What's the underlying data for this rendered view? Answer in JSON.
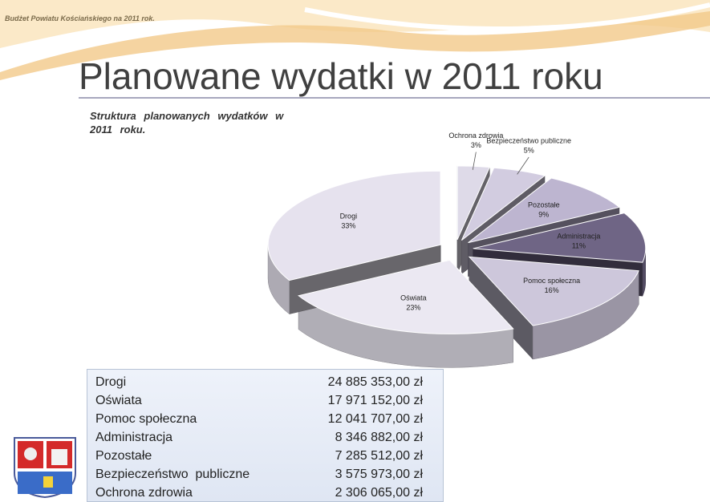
{
  "header": "Budżet Powiatu Kościańskiego na 2011 rok.",
  "title": "Planowane wydatki w 2011 roku",
  "chart_data": {
    "type": "pie",
    "title": "Struktura planowanych wydatków w 2011 roku.",
    "categories": [
      "Ochrona zdrowia",
      "Bezpieczeństwo publiczne",
      "Pozostałe",
      "Administracja",
      "Pomoc społeczna",
      "Oświata",
      "Drogi"
    ],
    "values": [
      3,
      5,
      9,
      11,
      16,
      23,
      33
    ],
    "value_labels": [
      "3%",
      "5%",
      "9%",
      "11%",
      "16%",
      "23%",
      "33%"
    ],
    "colors": [
      "#dedae8",
      "#d2cce0",
      "#bdb5d0",
      "#6f6585",
      "#cdc7db",
      "#ebe8f2",
      "#e6e2ee"
    ]
  },
  "table": {
    "rows": [
      [
        "Drogi",
        "24 885 353,00 zł"
      ],
      [
        "Oświata",
        "17 971 152,00 zł"
      ],
      [
        "Pomoc społeczna",
        "12 041 707,00 zł"
      ],
      [
        "Administracja",
        "8 346 882,00 zł"
      ],
      [
        "Pozostałe",
        "7 285 512,00 zł"
      ],
      [
        "Bezpieczeństwo  publiczne",
        "3 575 973,00 zł"
      ],
      [
        "Ochrona zdrowia",
        "2 306 065,00 zł"
      ]
    ]
  }
}
